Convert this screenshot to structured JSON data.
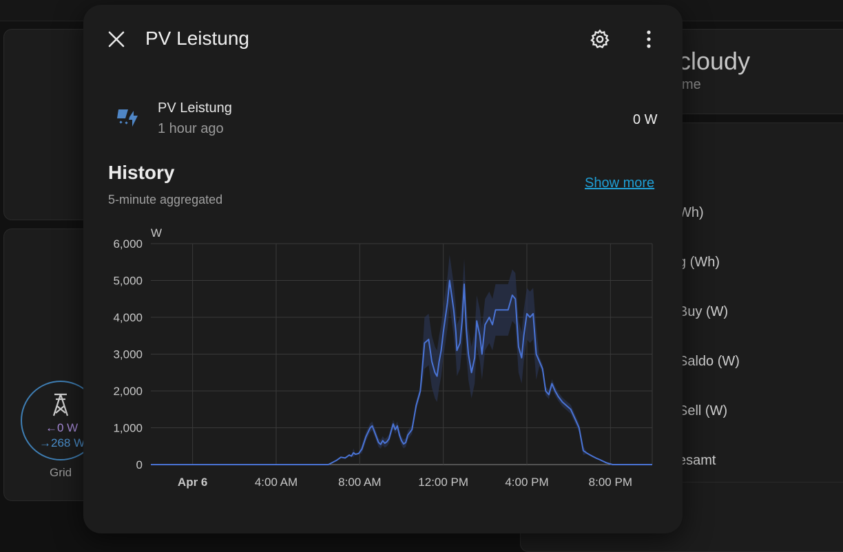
{
  "background": {
    "weather": {
      "title": "cloudy",
      "subtitle": "me"
    },
    "entities": [
      "Wh)",
      "g (Wh)",
      "Buy (W)",
      "Saldo (W)",
      "Sell (W)",
      "esamt"
    ],
    "grid": {
      "in": "0 W",
      "out": "268 W",
      "label": "Grid"
    }
  },
  "dialog": {
    "title": "PV Leistung",
    "entity": {
      "name": "PV Leistung",
      "last_changed": "1 hour ago",
      "state": "0 W"
    },
    "history": {
      "title": "History",
      "subtitle": "5-minute aggregated",
      "show_more": "Show more"
    }
  },
  "colors": {
    "series": "#4a74d6",
    "band": "#2a3350",
    "accent": "#1f9fd6"
  },
  "chart_data": {
    "type": "line",
    "ylabel": "W",
    "ylim": [
      0,
      6000
    ],
    "yticks": [
      "0",
      "1,000",
      "2,000",
      "3,000",
      "4,000",
      "5,000",
      "6,000"
    ],
    "xlim": [
      -2.0,
      22.0
    ],
    "xticks": [
      {
        "label": "Apr 6",
        "x": 0,
        "bold": true
      },
      {
        "label": "4:00 AM",
        "x": 4,
        "bold": false
      },
      {
        "label": "8:00 AM",
        "x": 8,
        "bold": false
      },
      {
        "label": "12:00 PM",
        "x": 12,
        "bold": false
      },
      {
        "label": "4:00 PM",
        "x": 16,
        "bold": false
      },
      {
        "label": "8:00 PM",
        "x": 20,
        "bold": false
      }
    ],
    "series": [
      {
        "x": [
          -2.0,
          6.5,
          6.9,
          7.1,
          7.3,
          7.5,
          7.6,
          7.7,
          7.8,
          7.95,
          8.1,
          8.3,
          8.5,
          8.6,
          8.7,
          8.8,
          8.9,
          9.0,
          9.1,
          9.2,
          9.3,
          9.4,
          9.5,
          9.6,
          9.7,
          9.8,
          9.9,
          10.0,
          10.1,
          10.2,
          10.3,
          10.5,
          10.7,
          10.9,
          11.1,
          11.3,
          11.45,
          11.6,
          11.7,
          11.8,
          11.9,
          12.0,
          12.1,
          12.2,
          12.3,
          12.4,
          12.5,
          12.6,
          12.65,
          12.8,
          12.9,
          13.0,
          13.1,
          13.2,
          13.35,
          13.5,
          13.6,
          13.75,
          13.85,
          14.0,
          14.2,
          14.35,
          14.5,
          14.7,
          14.9,
          15.1,
          15.3,
          15.45,
          15.6,
          15.75,
          15.85,
          16.0,
          16.15,
          16.3,
          16.45,
          16.6,
          16.75,
          16.9,
          17.05,
          17.2,
          17.35,
          17.5,
          17.7,
          17.9,
          18.1,
          18.3,
          18.5,
          18.7,
          18.9,
          19.1,
          19.3,
          19.5,
          19.8,
          20.1,
          20.4,
          22.0
        ],
        "values": [
          0,
          0,
          120,
          200,
          180,
          260,
          230,
          320,
          280,
          300,
          420,
          760,
          1000,
          1050,
          900,
          750,
          600,
          550,
          650,
          580,
          620,
          700,
          900,
          1100,
          950,
          1050,
          800,
          650,
          560,
          600,
          800,
          950,
          1600,
          2000,
          3300,
          3400,
          2800,
          2500,
          2400,
          2800,
          3100,
          3600,
          4000,
          4400,
          5000,
          4600,
          4200,
          3600,
          3100,
          3300,
          3900,
          4900,
          3700,
          3000,
          2500,
          2900,
          3900,
          3500,
          3000,
          3800,
          4000,
          3800,
          4200,
          4200,
          4200,
          4200,
          4600,
          4500,
          3200,
          2900,
          3500,
          4100,
          4000,
          4100,
          3000,
          2800,
          2600,
          2000,
          1900,
          2200,
          2000,
          1850,
          1700,
          1600,
          1500,
          1250,
          1000,
          380,
          300,
          240,
          180,
          130,
          50,
          0,
          0,
          0
        ]
      }
    ]
  }
}
